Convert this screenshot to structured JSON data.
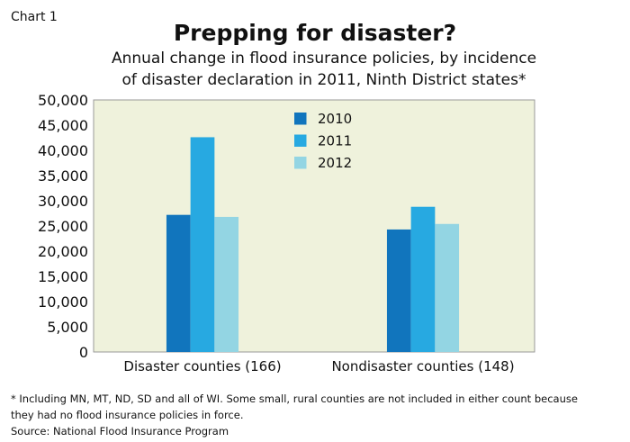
{
  "header": {
    "label": "Chart 1",
    "title": "Prepping for disaster?",
    "subtitle_line1": "Annual change in flood insurance policies, by incidence",
    "subtitle_line2": "of disaster declaration in 2011, Ninth District states*"
  },
  "footer": {
    "note_line1": "* Including MN, MT, ND, SD and all of WI. Some small, rural counties are not included in either count because",
    "note_line2": "they had no flood insurance policies in force.",
    "source": "Source: National Flood Insurance Program"
  },
  "chart_data": {
    "type": "bar",
    "categories": [
      "Disaster counties (166)",
      "Nondisaster counties (148)"
    ],
    "series": [
      {
        "name": "2010",
        "values": [
          27200,
          24300
        ],
        "color": "#1175bd"
      },
      {
        "name": "2011",
        "values": [
          42600,
          28800
        ],
        "color": "#27a9e1"
      },
      {
        "name": "2012",
        "values": [
          26800,
          25400
        ],
        "color": "#93d5e3"
      }
    ],
    "ylim": [
      0,
      50000
    ],
    "yticks": [
      "0",
      "5,000",
      "10,000",
      "15,000",
      "20,000",
      "25,000",
      "30,000",
      "35,000",
      "40,000",
      "45,000",
      "50,000"
    ],
    "legend": "top-center",
    "plot_background": "#eff2dc",
    "grid": false
  }
}
